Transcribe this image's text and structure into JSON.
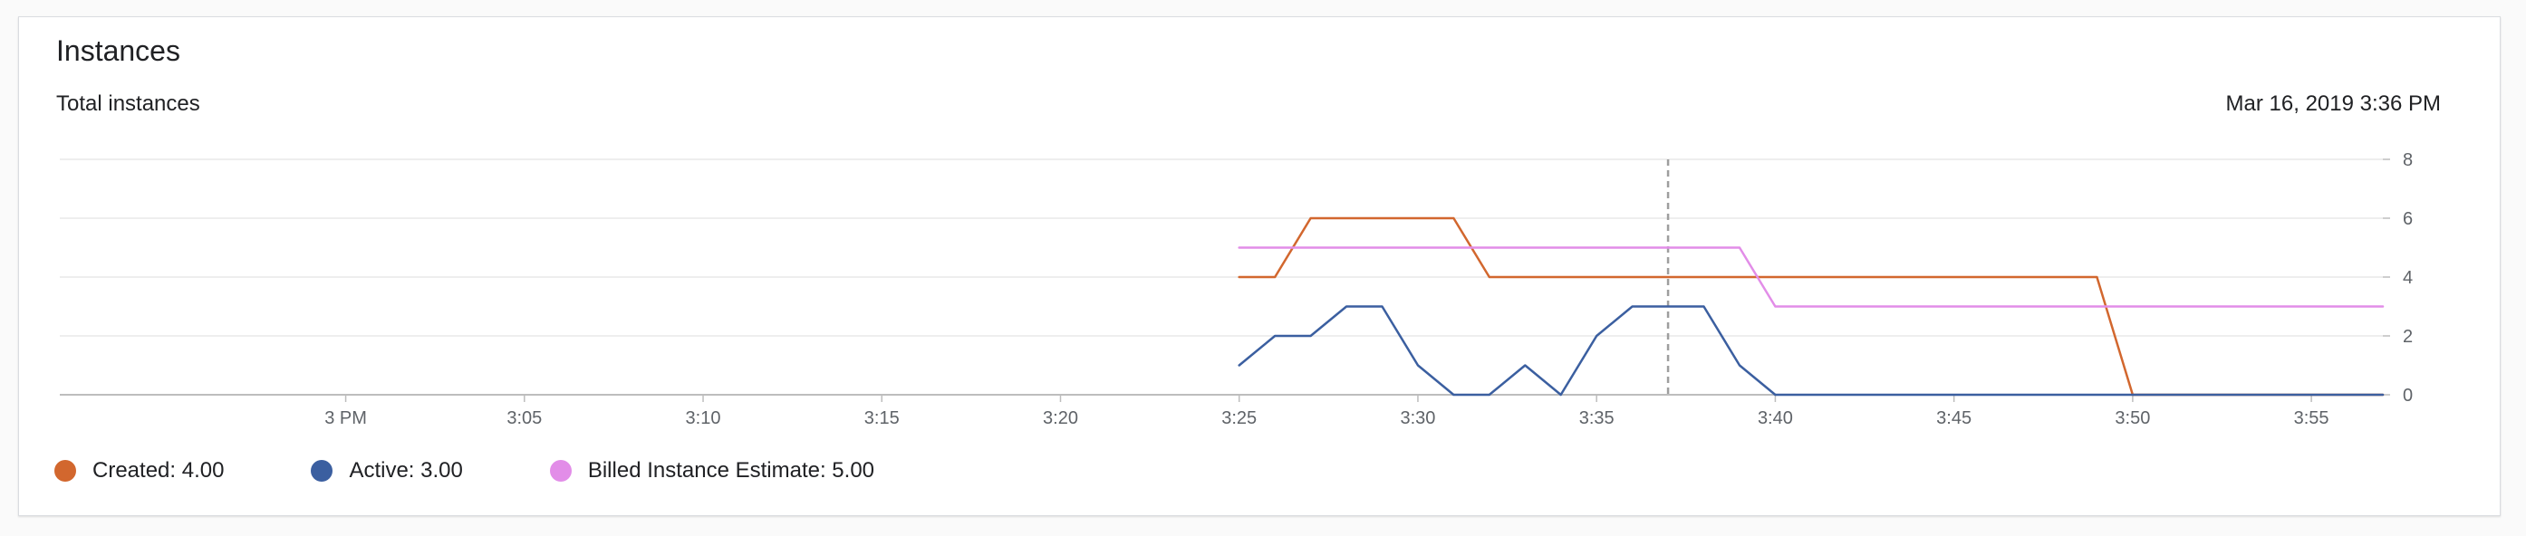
{
  "card": {
    "title": "Instances",
    "subtitle": "Total instances",
    "timestamp": "Mar 16, 2019 3:36 PM"
  },
  "legend": [
    {
      "label": "Created: 4.00",
      "color": "#d2672e"
    },
    {
      "label": "Active: 3.00",
      "color": "#3b5fa0"
    },
    {
      "label": "Billed Instance Estimate: 5.00",
      "color": "#e28de8"
    }
  ],
  "chart_data": {
    "type": "line",
    "x_unit": "minutes after 3 PM",
    "xlim": [
      -8,
      57
    ],
    "ylim": [
      0,
      8
    ],
    "y_ticks": [
      0,
      2,
      4,
      6,
      8
    ],
    "y_axis_side": "right",
    "x_ticks": [
      {
        "value": 0,
        "label": "3 PM"
      },
      {
        "value": 5,
        "label": "3:05"
      },
      {
        "value": 10,
        "label": "3:10"
      },
      {
        "value": 15,
        "label": "3:15"
      },
      {
        "value": 20,
        "label": "3:20"
      },
      {
        "value": 25,
        "label": "3:25"
      },
      {
        "value": 30,
        "label": "3:30"
      },
      {
        "value": 35,
        "label": "3:35"
      },
      {
        "value": 40,
        "label": "3:40"
      },
      {
        "value": 45,
        "label": "3:45"
      },
      {
        "value": 50,
        "label": "3:50"
      },
      {
        "value": 55,
        "label": "3:55"
      }
    ],
    "cursor_x": 37,
    "grid": true,
    "legend_position": "bottom-left",
    "series": [
      {
        "name": "Created",
        "color": "#d2672e",
        "x": [
          25,
          26,
          27,
          28,
          29,
          30,
          31,
          32,
          33,
          34,
          35,
          36,
          37,
          38,
          39,
          40,
          41,
          42,
          43,
          44,
          45,
          46,
          47,
          48,
          49,
          50,
          51,
          52,
          53,
          54,
          55,
          56,
          57
        ],
        "values": [
          4,
          4,
          6,
          6,
          6,
          6,
          6,
          4,
          4,
          4,
          4,
          4,
          4,
          4,
          4,
          4,
          4,
          4,
          4,
          4,
          4,
          4,
          4,
          4,
          4,
          0,
          0,
          0,
          0,
          0,
          0,
          0,
          0
        ]
      },
      {
        "name": "Active",
        "color": "#3b5fa0",
        "x": [
          25,
          26,
          27,
          28,
          29,
          30,
          31,
          32,
          33,
          34,
          35,
          36,
          37,
          38,
          39,
          40,
          41,
          42,
          43,
          44,
          45,
          46,
          47,
          48,
          49,
          50,
          51,
          52,
          53,
          54,
          55,
          56,
          57
        ],
        "values": [
          1,
          2,
          2,
          3,
          3,
          1,
          0,
          0,
          1,
          0,
          2,
          3,
          3,
          3,
          1,
          0,
          0,
          0,
          0,
          0,
          0,
          0,
          0,
          0,
          0,
          0,
          0,
          0,
          0,
          0,
          0,
          0,
          0
        ]
      },
      {
        "name": "Billed Instance Estimate",
        "color": "#e28de8",
        "x": [
          25,
          26,
          27,
          28,
          29,
          30,
          31,
          32,
          33,
          34,
          35,
          36,
          37,
          38,
          39,
          40,
          41,
          42,
          43,
          44,
          45,
          46,
          47,
          48,
          49,
          50,
          51,
          52,
          53,
          54,
          55,
          56,
          57
        ],
        "values": [
          5,
          5,
          5,
          5,
          5,
          5,
          5,
          5,
          5,
          5,
          5,
          5,
          5,
          5,
          5,
          3,
          3,
          3,
          3,
          3,
          3,
          3,
          3,
          3,
          3,
          3,
          3,
          3,
          3,
          3,
          3,
          3,
          3
        ]
      }
    ]
  }
}
